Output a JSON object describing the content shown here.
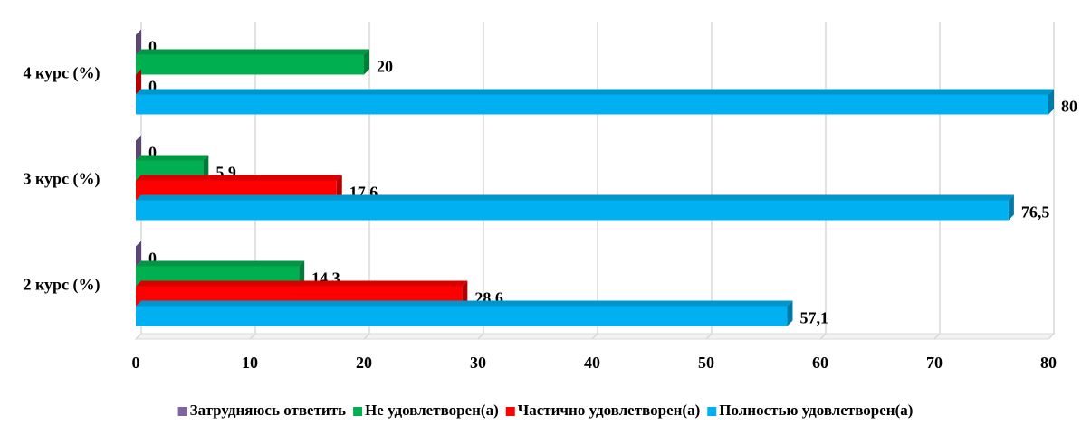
{
  "chart_data": {
    "type": "bar",
    "orientation": "horizontal",
    "categories": [
      "2 курс (%)",
      "3 курс (%)",
      "4 курс (%)"
    ],
    "series": [
      {
        "name": "Затрудняюсь ответить",
        "color": "#8064a2",
        "values": [
          0,
          0,
          0
        ]
      },
      {
        "name": "Не удовлетворен(а)",
        "color": "#00b050",
        "values": [
          14.3,
          5.9,
          20
        ],
        "value_labels": [
          "14,3",
          "5,9",
          "20"
        ]
      },
      {
        "name": "Частично удовлетворен(а)",
        "color": "#ff0000",
        "values": [
          28.6,
          17.6,
          0
        ],
        "value_labels": [
          "28,6",
          "17,6",
          "0"
        ]
      },
      {
        "name": "Полностью удовлетворен(а)",
        "color": "#00b0f0",
        "values": [
          57.1,
          76.5,
          80
        ],
        "value_labels": [
          "57,1",
          "76,5",
          "80"
        ]
      }
    ],
    "xlim": [
      0,
      80
    ],
    "xticks": [
      0,
      10,
      20,
      30,
      40,
      50,
      60,
      70,
      80
    ],
    "grid": true,
    "legend": "bottom"
  }
}
